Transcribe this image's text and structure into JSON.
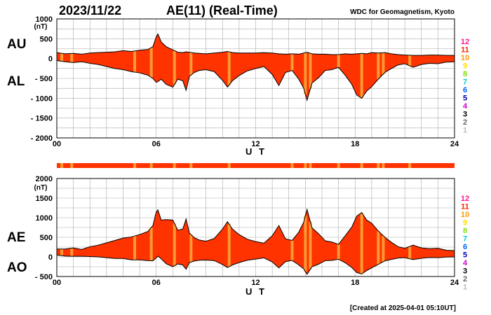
{
  "header": {
    "date": "2023/11/22",
    "title": "AE(11) (Real-Time)",
    "source": "WDC for Geomagnetism, Kyoto"
  },
  "footer": {
    "created": "[Created at 2025-04-01 05:10UT]"
  },
  "legend": {
    "labels": [
      "12",
      "11",
      "10",
      "9",
      "8",
      "7",
      "6",
      "5",
      "4",
      "3",
      "2",
      "1"
    ],
    "colors": [
      "#ff1493",
      "#ff2200",
      "#ff9900",
      "#ffdd00",
      "#88dd00",
      "#00cccc",
      "#0066ff",
      "#0000aa",
      "#cc00cc",
      "#000000",
      "#666666",
      "#bbbbbb"
    ]
  },
  "colors": {
    "fill": "#ff3300",
    "station_dip": "#ff9933",
    "line": "#000000",
    "grid": "#aaaaaa"
  },
  "chart_data": [
    {
      "type": "area",
      "series_labels": [
        "AU",
        "AL"
      ],
      "unit_label": "(nT)",
      "xlabel": "U T",
      "xlim": [
        0,
        24
      ],
      "xticks": [
        0,
        6,
        12,
        18,
        24
      ],
      "xtick_labels": [
        "00",
        "06",
        "12",
        "18",
        "24"
      ],
      "ylim": [
        -2000,
        1000
      ],
      "yticks": [
        1000,
        500,
        0,
        -500,
        -1000,
        -1500,
        -2000
      ],
      "ytick_labels": [
        "1000",
        "500",
        "0",
        "- 500",
        "- 1000",
        "- 1500",
        "- 2000"
      ],
      "grid": true,
      "x": [
        0,
        0.5,
        1,
        1.5,
        2,
        2.5,
        3,
        3.5,
        4,
        4.5,
        5,
        5.5,
        5.8,
        6,
        6.1,
        6.3,
        6.6,
        7,
        7.3,
        7.6,
        7.8,
        8,
        8.3,
        8.6,
        9,
        9.5,
        10,
        10.3,
        10.6,
        11,
        11.5,
        12,
        12.5,
        13,
        13.4,
        13.8,
        14.2,
        14.6,
        14.9,
        15.1,
        15.4,
        15.8,
        16.2,
        16.6,
        17,
        17.4,
        17.8,
        18.1,
        18.4,
        18.7,
        19,
        19.4,
        19.8,
        20.2,
        20.6,
        21,
        21.5,
        22,
        22.5,
        23,
        23.5,
        24
      ],
      "AU": [
        150,
        120,
        130,
        110,
        140,
        150,
        160,
        170,
        200,
        180,
        210,
        230,
        300,
        550,
        620,
        420,
        300,
        220,
        160,
        150,
        170,
        160,
        140,
        130,
        120,
        140,
        160,
        180,
        150,
        140,
        140,
        140,
        150,
        140,
        120,
        110,
        120,
        110,
        140,
        160,
        120,
        110,
        110,
        100,
        100,
        120,
        110,
        120,
        130,
        120,
        150,
        140,
        150,
        120,
        100,
        90,
        80,
        80,
        90,
        90,
        80,
        80
      ],
      "AL": [
        -50,
        -80,
        -100,
        -80,
        -120,
        -150,
        -200,
        -250,
        -280,
        -330,
        -360,
        -420,
        -500,
        -600,
        -580,
        -520,
        -650,
        -720,
        -520,
        -560,
        -800,
        -450,
        -350,
        -300,
        -280,
        -330,
        -550,
        -720,
        -560,
        -430,
        -310,
        -250,
        -200,
        -400,
        -680,
        -350,
        -300,
        -520,
        -750,
        -1050,
        -620,
        -480,
        -300,
        -280,
        -220,
        -420,
        -650,
        -920,
        -1000,
        -820,
        -710,
        -520,
        -350,
        -250,
        -160,
        -130,
        -220,
        -150,
        -120,
        -130,
        -90,
        -80
      ]
    },
    {
      "type": "area",
      "series_labels": [
        "AE",
        "AO"
      ],
      "unit_label": "(nT)",
      "xlabel": "U T",
      "xlim": [
        0,
        24
      ],
      "xticks": [
        0,
        6,
        12,
        18,
        24
      ],
      "xtick_labels": [
        "00",
        "06",
        "12",
        "18",
        "24"
      ],
      "ylim": [
        -500,
        2000
      ],
      "yticks": [
        2000,
        1500,
        1000,
        500,
        0,
        -500
      ],
      "ytick_labels": [
        "2000",
        "1500",
        "1000",
        "500",
        "0",
        "- 500"
      ],
      "grid": true,
      "x": [
        0,
        0.5,
        1,
        1.5,
        2,
        2.5,
        3,
        3.5,
        4,
        4.5,
        5,
        5.5,
        5.8,
        6,
        6.1,
        6.3,
        6.6,
        7,
        7.3,
        7.6,
        7.8,
        8,
        8.3,
        8.6,
        9,
        9.5,
        10,
        10.3,
        10.6,
        11,
        11.5,
        12,
        12.5,
        13,
        13.4,
        13.8,
        14.2,
        14.6,
        14.9,
        15.1,
        15.4,
        15.8,
        16.2,
        16.6,
        17,
        17.4,
        17.8,
        18.1,
        18.4,
        18.7,
        19,
        19.4,
        19.8,
        20.2,
        20.6,
        21,
        21.5,
        22,
        22.5,
        23,
        23.5,
        24
      ],
      "AE": [
        200,
        200,
        230,
        190,
        260,
        300,
        360,
        420,
        480,
        510,
        570,
        650,
        800,
        1150,
        1200,
        940,
        950,
        940,
        680,
        710,
        970,
        610,
        490,
        430,
        400,
        470,
        710,
        900,
        710,
        570,
        450,
        390,
        350,
        540,
        800,
        460,
        420,
        630,
        890,
        1210,
        740,
        590,
        410,
        380,
        320,
        540,
        760,
        1040,
        1130,
        940,
        860,
        660,
        500,
        370,
        260,
        220,
        300,
        230,
        210,
        220,
        170,
        160
      ],
      "AO": [
        50,
        20,
        15,
        15,
        10,
        0,
        -20,
        -40,
        -40,
        -75,
        -75,
        -95,
        -100,
        -25,
        20,
        -50,
        -175,
        -250,
        -180,
        -205,
        -315,
        -145,
        -105,
        -85,
        -80,
        -95,
        -195,
        -270,
        -205,
        -145,
        -85,
        -55,
        -25,
        -130,
        -280,
        -120,
        -90,
        -205,
        -305,
        -445,
        -250,
        -185,
        -95,
        -90,
        -60,
        -150,
        -270,
        -400,
        -435,
        -350,
        -280,
        -190,
        -100,
        -65,
        -30,
        -20,
        -70,
        -35,
        -15,
        -20,
        -5,
        0
      ]
    }
  ],
  "station_bar": {
    "description_none": true
  }
}
